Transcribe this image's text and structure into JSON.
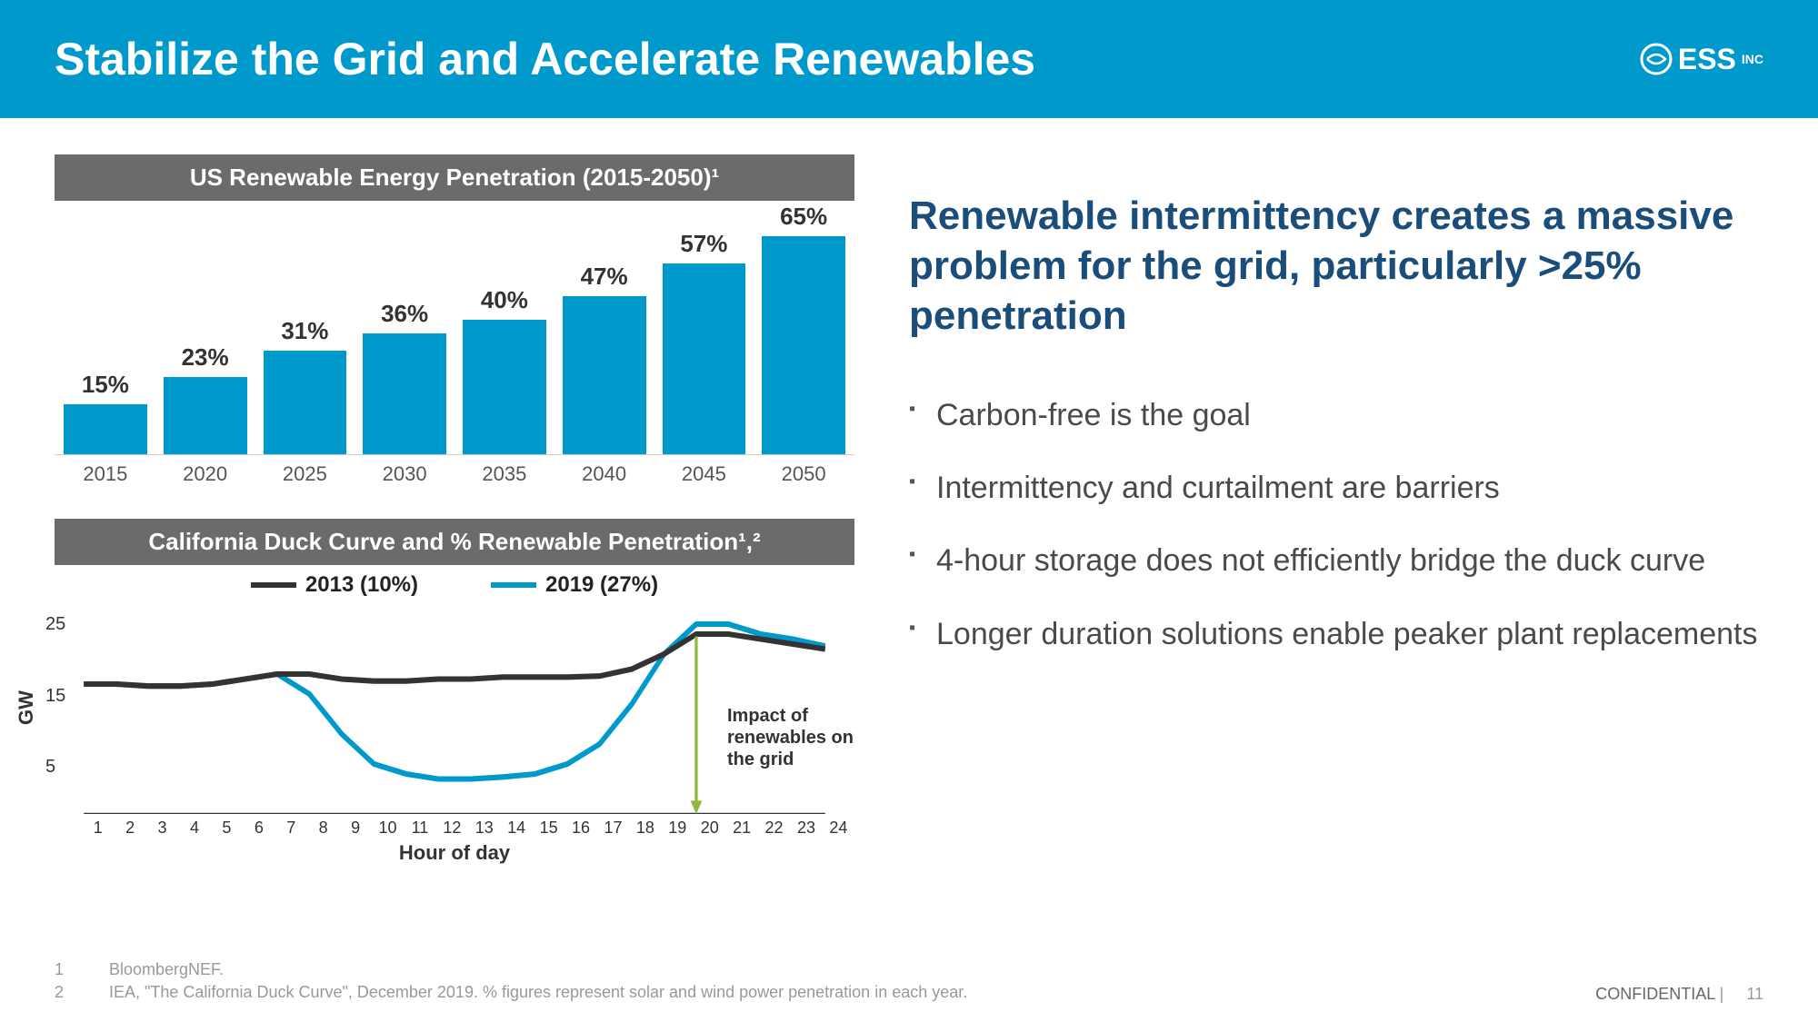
{
  "header": {
    "title": "Stabilize the Grid and Accelerate Renewables",
    "logo_text": "ESS",
    "logo_sup": "INC"
  },
  "bar_chart": {
    "title": "US Renewable Energy Penetration (2015-2050)¹",
    "type": "bar",
    "categories": [
      "2015",
      "2020",
      "2025",
      "2030",
      "2035",
      "2040",
      "2045",
      "2050"
    ],
    "values": [
      15,
      23,
      31,
      36,
      40,
      47,
      57,
      65
    ],
    "value_suffix": "%",
    "bar_color": "#0099cc",
    "max_value": 65,
    "label_color": "#333333",
    "category_color": "#555555",
    "label_fontsize": 26,
    "category_fontsize": 22
  },
  "line_chart": {
    "title": "California Duck Curve and % Renewable Penetration¹,²",
    "type": "line",
    "legend": [
      {
        "label": "2013 (10%)",
        "color": "#333333",
        "width": 6
      },
      {
        "label": "2019 (27%)",
        "color": "#0099cc",
        "width": 6
      }
    ],
    "ylabel": "GW",
    "xlabel": "Hour of day",
    "ylim": [
      5,
      25
    ],
    "yticks": [
      5,
      15,
      25
    ],
    "xticks": [
      1,
      2,
      3,
      4,
      5,
      6,
      7,
      8,
      9,
      10,
      11,
      12,
      13,
      14,
      15,
      16,
      17,
      18,
      19,
      20,
      21,
      22,
      23,
      24
    ],
    "series": {
      "s2013": [
        18,
        18,
        17.8,
        17.8,
        18,
        18.5,
        19,
        19,
        18.5,
        18.3,
        18.3,
        18.5,
        18.5,
        18.7,
        18.7,
        18.7,
        18.8,
        19.5,
        21,
        23,
        23,
        22.5,
        22,
        21.5
      ],
      "s2019": [
        18,
        18,
        17.8,
        17.8,
        18,
        18.5,
        19,
        17,
        13,
        10,
        9,
        8.5,
        8.5,
        8.7,
        9,
        10,
        12,
        16,
        21,
        24,
        24,
        23,
        22.5,
        21.8
      ]
    },
    "annotation": "Impact of renewables on the grid",
    "arrow_color": "#8fb83f",
    "grid_color": "#cccccc",
    "background_color": "#ffffff"
  },
  "right_panel": {
    "headline": "Renewable intermittency creates a massive problem for the grid, particularly >25% penetration",
    "bullets": [
      "Carbon-free is the goal",
      "Intermittency and curtailment are barriers",
      "4-hour storage does not efficiently bridge the duck curve",
      "Longer duration solutions enable peaker plant replacements"
    ]
  },
  "footer": {
    "footnotes": [
      {
        "num": "1",
        "text": "BloombergNEF."
      },
      {
        "num": "2",
        "text": "IEA, \"The California Duck Curve\", December 2019. % figures represent solar and wind power penetration in each year."
      }
    ],
    "confidential": "CONFIDENTIAL",
    "page": "11"
  },
  "colors": {
    "header_bg": "#0099cc",
    "title_bg": "#6b6b6b",
    "headline": "#1a4d7a",
    "body_text": "#4a4a4a"
  }
}
